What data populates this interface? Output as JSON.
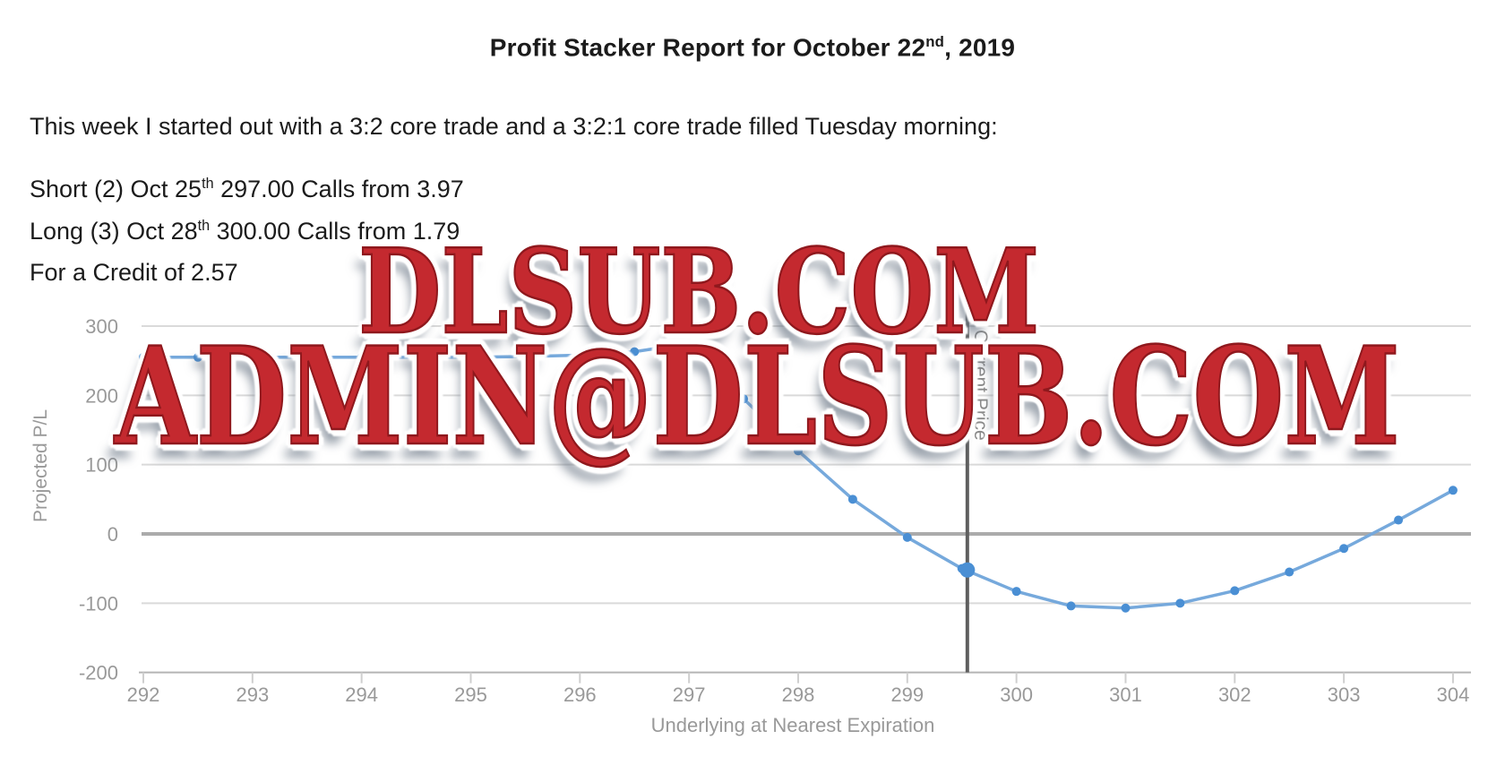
{
  "document": {
    "title": {
      "text": "Profit Stacker Report for October 22",
      "superscript": "nd",
      "suffix": ", 2019"
    },
    "intro": "This week I started out with a 3:2 core trade and a 3:2:1 core trade filled Tuesday morning:",
    "trade_lines": [
      {
        "text": "Short (2) Oct 25",
        "superscript": "th",
        "suffix": " 297.00 Calls from 3.97"
      },
      {
        "text": "Long (3) Oct 28",
        "superscript": "th",
        "suffix": " 300.00 Calls from 1.79"
      },
      {
        "text": "For a Credit of 2.57",
        "superscript": "",
        "suffix": ""
      }
    ]
  },
  "watermarks": {
    "line1": "DLSUB.COM",
    "line2": "ADMIN@DLSUB.COM",
    "color": "#c4292f"
  },
  "chart_data": {
    "type": "line",
    "title": "",
    "xlabel": "Underlying at Nearest Expiration",
    "ylabel": "Projected P/L",
    "x": [
      292,
      292.5,
      293,
      293.5,
      294,
      294.5,
      295,
      295.5,
      296,
      296.5,
      297,
      297.5,
      298,
      298.5,
      299,
      299.5,
      300,
      300.5,
      301,
      301.5,
      302,
      302.5,
      303,
      303.5,
      304
    ],
    "y": [
      255,
      255,
      255,
      255,
      255,
      255,
      255,
      256,
      258,
      263,
      275,
      195,
      120,
      50,
      -5,
      -50,
      -83,
      -104,
      -107,
      -100,
      -82,
      -55,
      -21,
      20,
      63
    ],
    "xlim": [
      292,
      304
    ],
    "ylim": [
      -200,
      300
    ],
    "xticks": [
      292,
      293,
      294,
      295,
      296,
      297,
      298,
      299,
      300,
      301,
      302,
      303,
      304
    ],
    "yticks": [
      300,
      200,
      100,
      0,
      -100,
      -200
    ],
    "grid": "horizontal",
    "legend": "none",
    "series_color": "#76a9dc",
    "point_color": "#4a8fd4",
    "grid_color": "#dadada",
    "zero_line_color": "#ababab",
    "axis_text_color": "#999999",
    "current_price": {
      "x": 299.55,
      "value": -52,
      "label": "Current Price",
      "line_color": "#5f5f5f"
    }
  }
}
